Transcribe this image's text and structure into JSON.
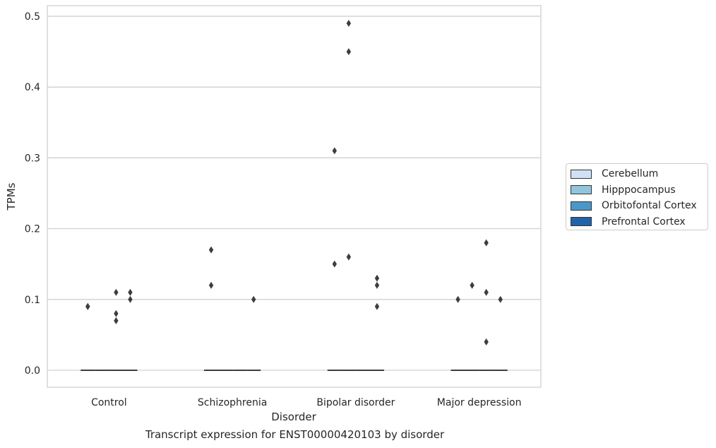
{
  "chart_data": {
    "type": "box",
    "title": "Transcript expression for ENST00000420103 by disorder",
    "xlabel": "Disorder",
    "ylabel": "TPMs",
    "ylim": [
      -0.024,
      0.515
    ],
    "yticks": [
      "0.0",
      "0.1",
      "0.2",
      "0.3",
      "0.4",
      "0.5"
    ],
    "ytick_values": [
      0.0,
      0.1,
      0.2,
      0.3,
      0.4,
      0.5
    ],
    "grid": true,
    "legend_position": "right",
    "categories": [
      "Control",
      "Schizophrenia",
      "Bipolar disorder",
      "Major depression"
    ],
    "series": [
      {
        "name": "Cerebellum",
        "color": "#cfe1f2",
        "median": [
          0,
          0,
          0,
          0
        ],
        "outliers": [
          [
            0.09,
            0.09
          ],
          [
            0.12,
            0.17
          ],
          [
            0.15,
            0.31
          ],
          [
            0.1
          ]
        ]
      },
      {
        "name": "Hipppocampus",
        "color": "#93c4de",
        "median": [
          0,
          0,
          0,
          0
        ],
        "outliers": [
          [],
          [],
          [
            0.16,
            0.45,
            0.49
          ],
          [
            0.12
          ]
        ]
      },
      {
        "name": "Orbitofontal Cortex",
        "color": "#4a98c9",
        "median": [
          0,
          0,
          0,
          0
        ],
        "outliers": [
          [
            0.07,
            0.08,
            0.11
          ],
          [],
          [],
          [
            0.04,
            0.11,
            0.18
          ]
        ]
      },
      {
        "name": "Prefrontal Cortex",
        "color": "#2163aa",
        "median": [
          0,
          0,
          0,
          0
        ],
        "outliers": [
          [
            0.1,
            0.11
          ],
          [
            0.1
          ],
          [
            0.09,
            0.12,
            0.13
          ],
          [
            0.1
          ]
        ]
      }
    ]
  }
}
